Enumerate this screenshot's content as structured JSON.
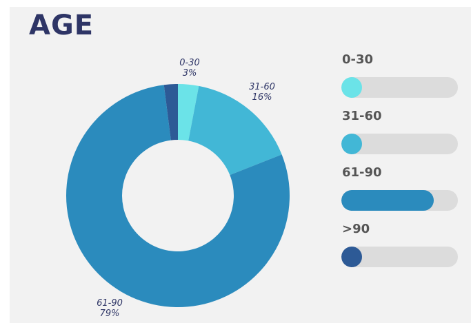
{
  "title": "AGE",
  "chart_data": {
    "type": "pie",
    "categories": [
      "0-30",
      "31-60",
      "61-90",
      ">90"
    ],
    "values": [
      3,
      16,
      79,
      2
    ],
    "value_labels": [
      "3%",
      "16%",
      "79%",
      ""
    ],
    "colors": [
      "#6be3e8",
      "#42b7d6",
      "#2b8bbd",
      "#2d5a96"
    ],
    "donut": true,
    "legend_position": "right",
    "bars": [
      {
        "label": "0-30",
        "fraction": 0.03,
        "color": "#6be3e8"
      },
      {
        "label": "31-60",
        "fraction": 0.16,
        "color": "#42b7d6"
      },
      {
        "label": "61-90",
        "fraction": 0.79,
        "color": "#2b8bbd"
      },
      {
        "label": ">90",
        "fraction": 0.02,
        "color": "#2d5a96"
      }
    ]
  }
}
